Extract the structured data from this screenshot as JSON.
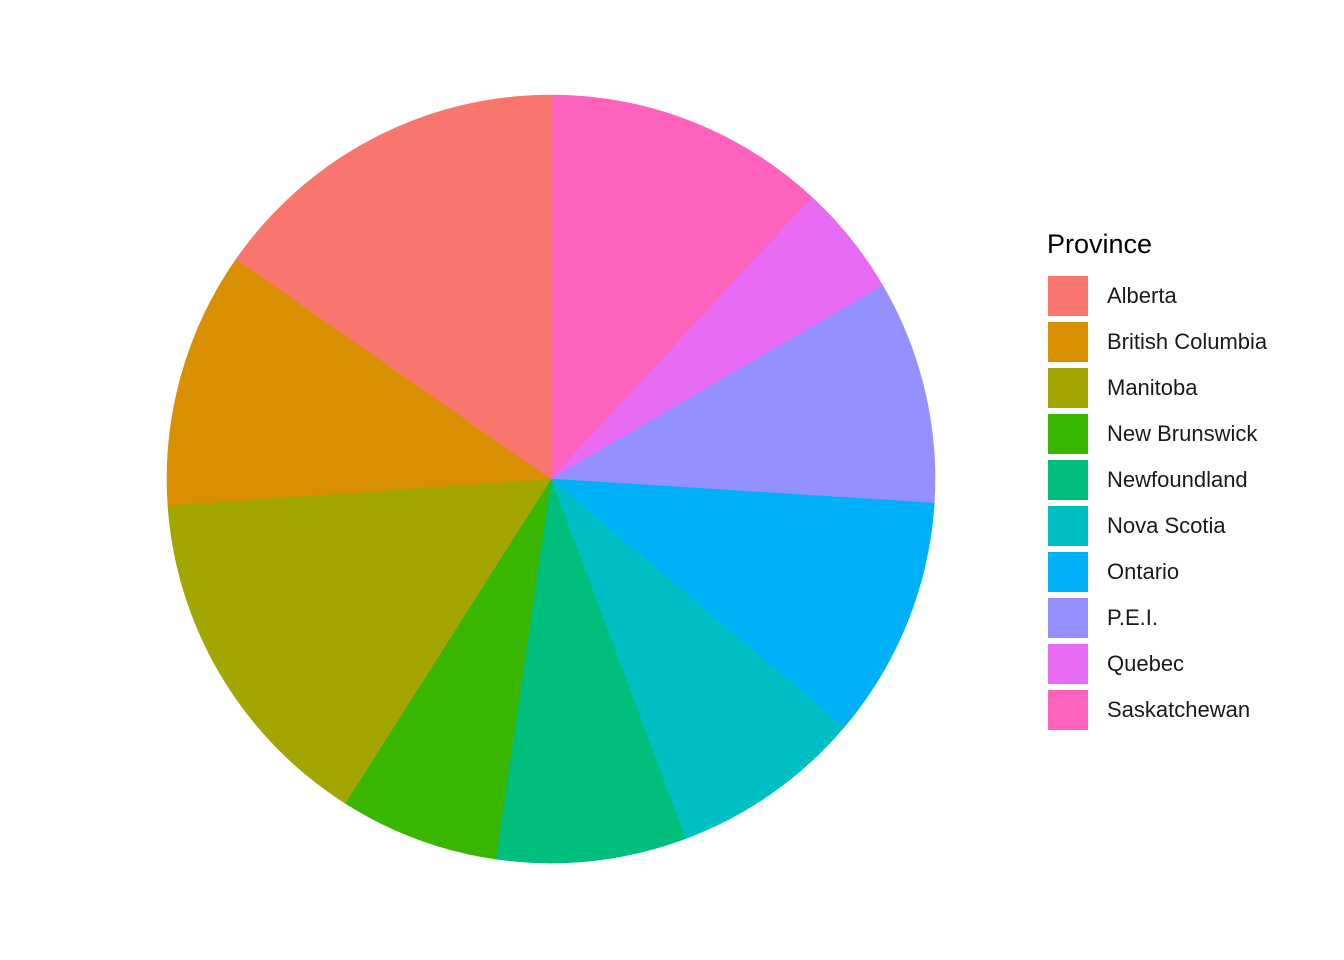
{
  "chart_data": {
    "type": "pie",
    "legend": {
      "title": "Province",
      "position": "right"
    },
    "direction": "clockwise",
    "start": "12 o'clock",
    "categories": [
      "Saskatchewan",
      "Quebec",
      "P.E.I.",
      "Ontario",
      "Nova Scotia",
      "Newfoundland",
      "New Brunswick",
      "Manitoba",
      "British Columbia",
      "Alberta"
    ],
    "values": [
      11.9,
      4.7,
      9.4,
      10.2,
      8.1,
      8.0,
      6.7,
      14.9,
      10.8,
      15.3
    ],
    "units": "percent of total",
    "colors": {
      "Alberta": "#F8766D",
      "British Columbia": "#D89000",
      "Manitoba": "#A3A500",
      "New Brunswick": "#39B600",
      "Newfoundland": "#00BF7D",
      "Nova Scotia": "#00BFC4",
      "Ontario": "#00B0F6",
      "P.E.I.": "#9590FF",
      "Quebec": "#E76BF3",
      "Saskatchewan": "#FF62BC"
    },
    "legend_order": [
      "Alberta",
      "British Columbia",
      "Manitoba",
      "New Brunswick",
      "Newfoundland",
      "Nova Scotia",
      "Ontario",
      "P.E.I.",
      "Quebec",
      "Saskatchewan"
    ]
  }
}
